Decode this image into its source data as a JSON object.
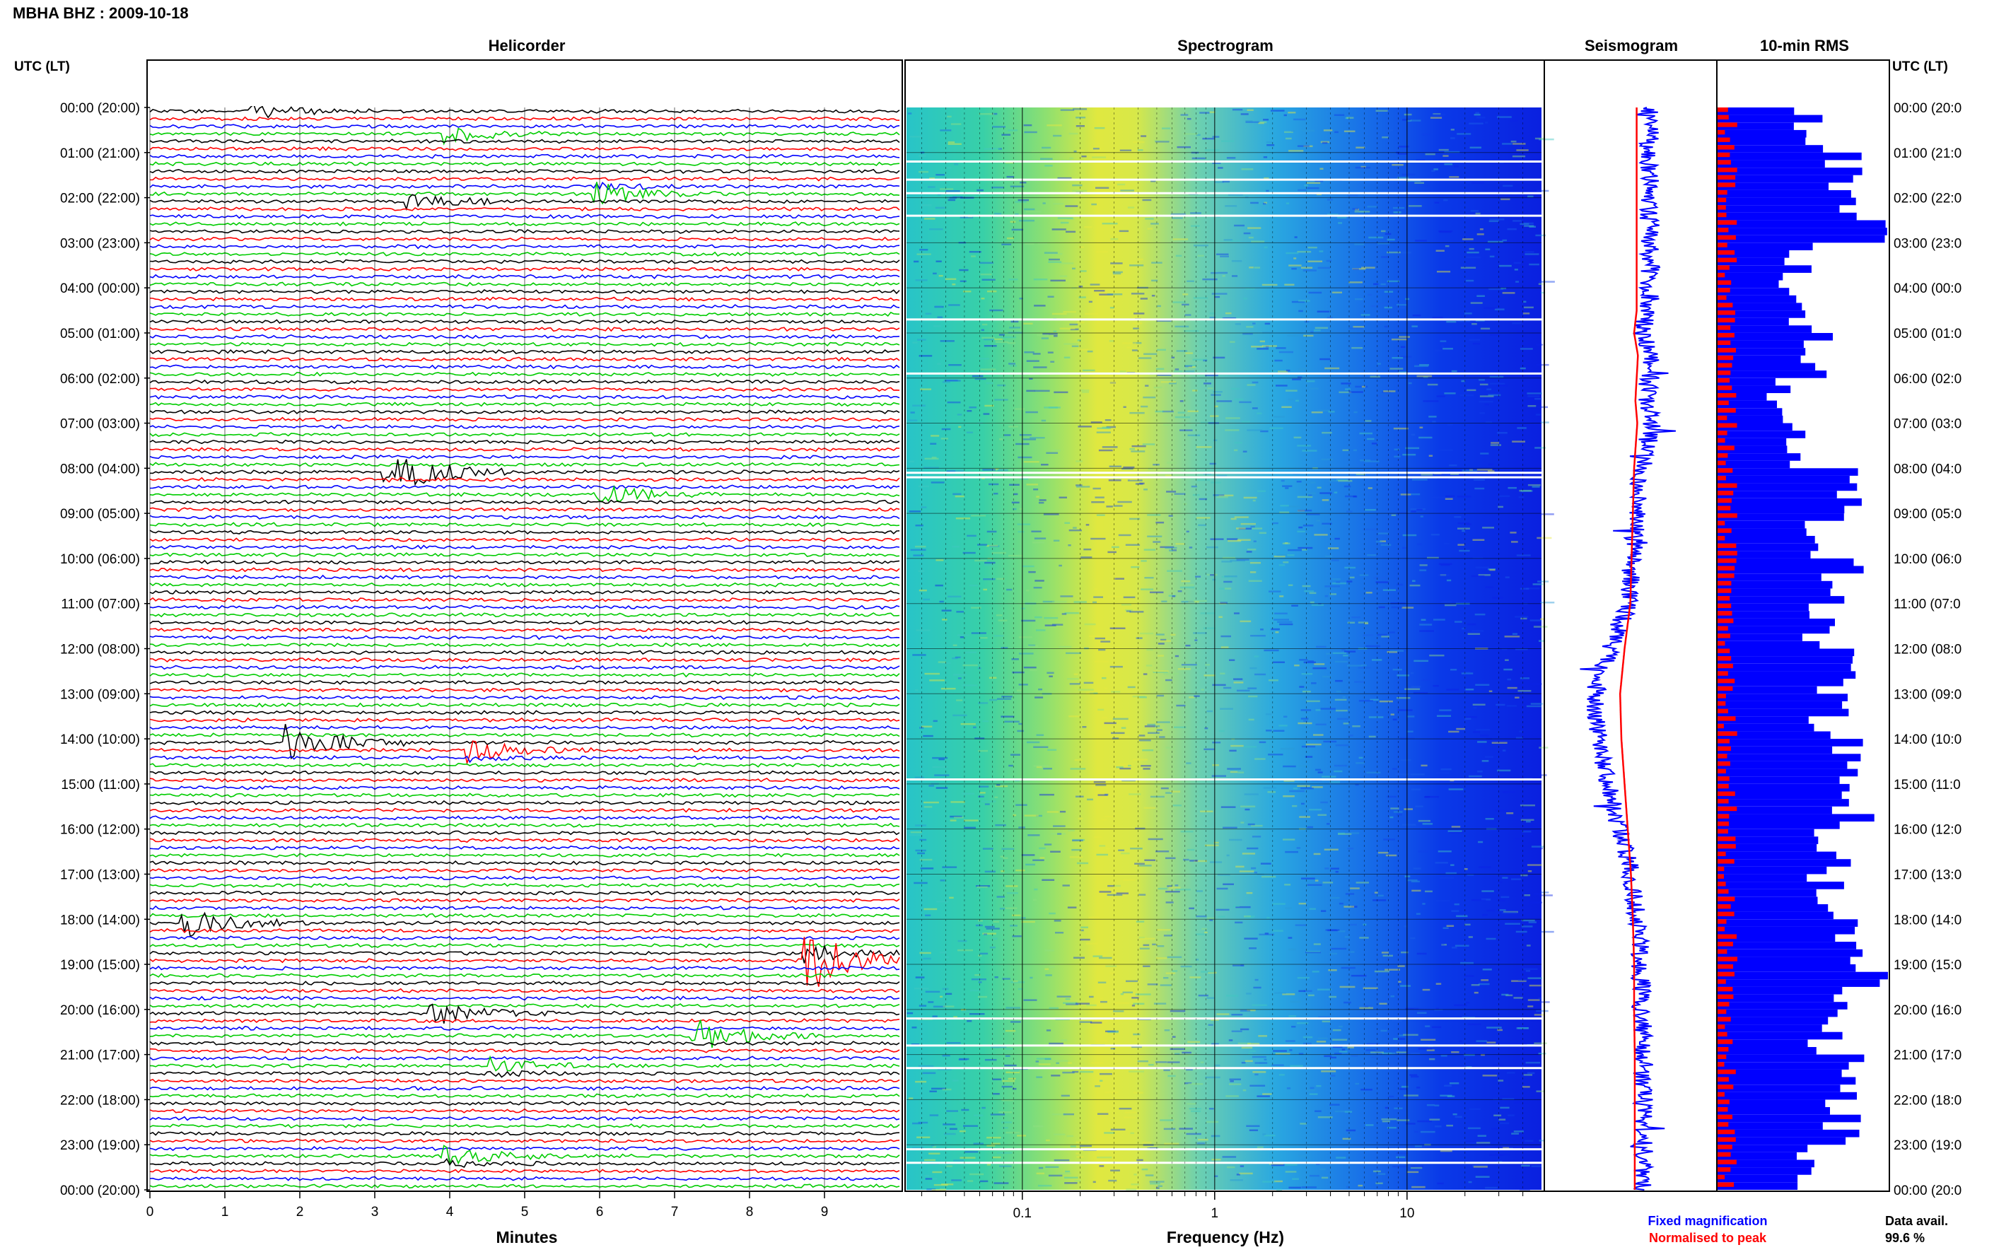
{
  "title": "MBHA BHZ : 2009-10-18",
  "panels": {
    "helicorder": "Helicorder",
    "spectrogram": "Spectrogram",
    "seismogram": "Seismogram",
    "rms": "10-min RMS"
  },
  "axis": {
    "left_header": "UTC (LT)",
    "right_header": "UTC (LT)",
    "minutes_label": "Minutes",
    "frequency_label": "Frequency (Hz)"
  },
  "time_labels_left": [
    "00:00 (20:00)",
    "01:00 (21:00)",
    "02:00 (22:00)",
    "03:00 (23:00)",
    "04:00 (00:00)",
    "05:00 (01:00)",
    "06:00 (02:00)",
    "07:00 (03:00)",
    "08:00 (04:00)",
    "09:00 (05:00)",
    "10:00 (06:00)",
    "11:00 (07:00)",
    "12:00 (08:00)",
    "13:00 (09:00)",
    "14:00 (10:00)",
    "15:00 (11:00)",
    "16:00 (12:00)",
    "17:00 (13:00)",
    "18:00 (14:00)",
    "19:00 (15:00)",
    "20:00 (16:00)",
    "21:00 (17:00)",
    "22:00 (18:00)",
    "23:00 (19:00)",
    "00:00 (20:00)"
  ],
  "time_labels_right": [
    "00:00 (20:0",
    "01:00 (21:0",
    "02:00 (22:0",
    "03:00 (23:0",
    "04:00 (00:0",
    "05:00 (01:0",
    "06:00 (02:0",
    "07:00 (03:0",
    "08:00 (04:0",
    "09:00 (05:0",
    "10:00 (06:0",
    "11:00 (07:0",
    "12:00 (08:0",
    "13:00 (09:0",
    "14:00 (10:0",
    "15:00 (11:0",
    "16:00 (12:0",
    "17:00 (13:0",
    "18:00 (14:0",
    "19:00 (15:0",
    "20:00 (16:0",
    "21:00 (17:0",
    "22:00 (18:0",
    "23:00 (19:0",
    "00:00 (20:0"
  ],
  "legend": {
    "fixed": "Fixed magnification",
    "normalised": "Normalised to peak",
    "data_avail_label": "Data avail.",
    "data_avail_value": "99.6 %"
  },
  "colors": {
    "trace_cycle": [
      "#000000",
      "#ff0000",
      "#0000ff",
      "#00cc00"
    ],
    "fixed": "#0000ff",
    "normalised": "#ff0000"
  },
  "chart_data": {
    "type": "heatmap",
    "title": "MBHA BHZ : 2009-10-18",
    "helicorder": {
      "x_ticks": [
        "0",
        "1",
        "2",
        "3",
        "4",
        "5",
        "6",
        "7",
        "8",
        "9"
      ],
      "xlim": [
        0,
        10
      ],
      "xlabel": "Minutes",
      "rows_per_hour": 6,
      "events": [
        {
          "hour": 0.0,
          "minute": 1.4,
          "amp": 1.0
        },
        {
          "hour": 0.5,
          "minute": 4.0,
          "amp": 1.2
        },
        {
          "hour": 1.8,
          "minute": 6.0,
          "amp": 2.0
        },
        {
          "hour": 2.0,
          "minute": 3.5,
          "amp": 1.2
        },
        {
          "hour": 8.0,
          "minute": 3.2,
          "amp": 3.5
        },
        {
          "hour": 8.5,
          "minute": 6.0,
          "amp": 1.5
        },
        {
          "hour": 14.0,
          "minute": 1.9,
          "amp": 3.0
        },
        {
          "hour": 14.2,
          "minute": 4.3,
          "amp": 2.0
        },
        {
          "hour": 18.0,
          "minute": 0.5,
          "amp": 2.0
        },
        {
          "hour": 18.8,
          "minute": 8.8,
          "amp": 6.0
        },
        {
          "hour": 20.0,
          "minute": 3.8,
          "amp": 1.8
        },
        {
          "hour": 20.5,
          "minute": 7.3,
          "amp": 2.5
        },
        {
          "hour": 21.2,
          "minute": 4.6,
          "amp": 1.6
        },
        {
          "hour": 23.2,
          "minute": 4.0,
          "amp": 2.0
        }
      ]
    },
    "spectrogram": {
      "xscale": "log",
      "xlim": [
        0.025,
        50
      ],
      "x_ticks": [
        "0.1",
        "1",
        "10"
      ],
      "xlabel": "Frequency (Hz)",
      "peak_frequency_hz": 0.3
    },
    "seismogram": {
      "series": [
        {
          "name": "Fixed magnification",
          "color": "#0000ff"
        },
        {
          "name": "Normalised to peak",
          "color": "#ff0000"
        }
      ],
      "hours": [
        0,
        4.5,
        5,
        5.5,
        6.5,
        7,
        8,
        11,
        12,
        13,
        14,
        15,
        16,
        17,
        18,
        19,
        20,
        21,
        22,
        23,
        24
      ],
      "offset": [
        0.4,
        0.4,
        0.0,
        0.6,
        0.2,
        0.5,
        0.0,
        -0.6,
        -1.5,
        -2.2,
        -2.0,
        -1.5,
        -1.0,
        -0.5,
        -0.2,
        0.0,
        0.0,
        0.1,
        0.1,
        0.1,
        0.1
      ]
    },
    "rms": {
      "hours": 24,
      "bins_per_hour": 6,
      "hourly_level": [
        0.55,
        0.7,
        0.8,
        0.45,
        0.45,
        0.6,
        0.35,
        0.5,
        0.7,
        0.6,
        0.7,
        0.6,
        0.7,
        0.65,
        0.7,
        0.8,
        0.7,
        0.65,
        0.7,
        0.85,
        0.6,
        0.75,
        0.75,
        0.55
      ]
    }
  }
}
